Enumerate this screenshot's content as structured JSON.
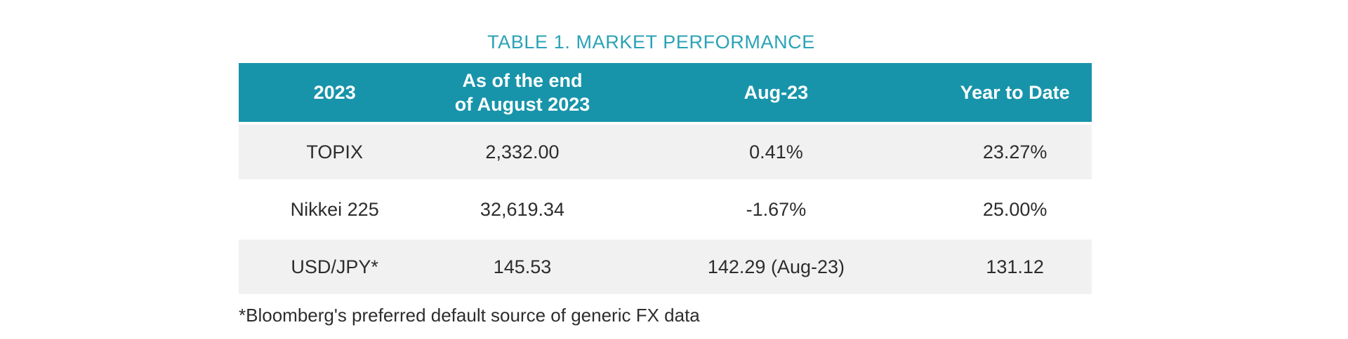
{
  "chart_data": {
    "type": "table",
    "title": "TABLE 1. MARKET PERFORMANCE",
    "headers": [
      "2023",
      "As of the end\nof August 2023",
      "Aug-23",
      "Year to Date"
    ],
    "rows": [
      [
        "TOPIX",
        "2,332.00",
        "0.41%",
        "23.27%"
      ],
      [
        "Nikkei 225",
        "32,619.34",
        "-1.67%",
        "25.00%"
      ],
      [
        "USD/JPY*",
        "145.53",
        "142.29 (Aug-23)",
        "131.12"
      ]
    ]
  },
  "footnote": "*Bloomberg's preferred default source of generic FX data",
  "colors": {
    "header_bg": "#1794aa",
    "header_text": "#ffffff",
    "title_text": "#2aa2b6",
    "row_alt_bg": "#f1f1f2",
    "body_text": "#2d2d2d"
  }
}
